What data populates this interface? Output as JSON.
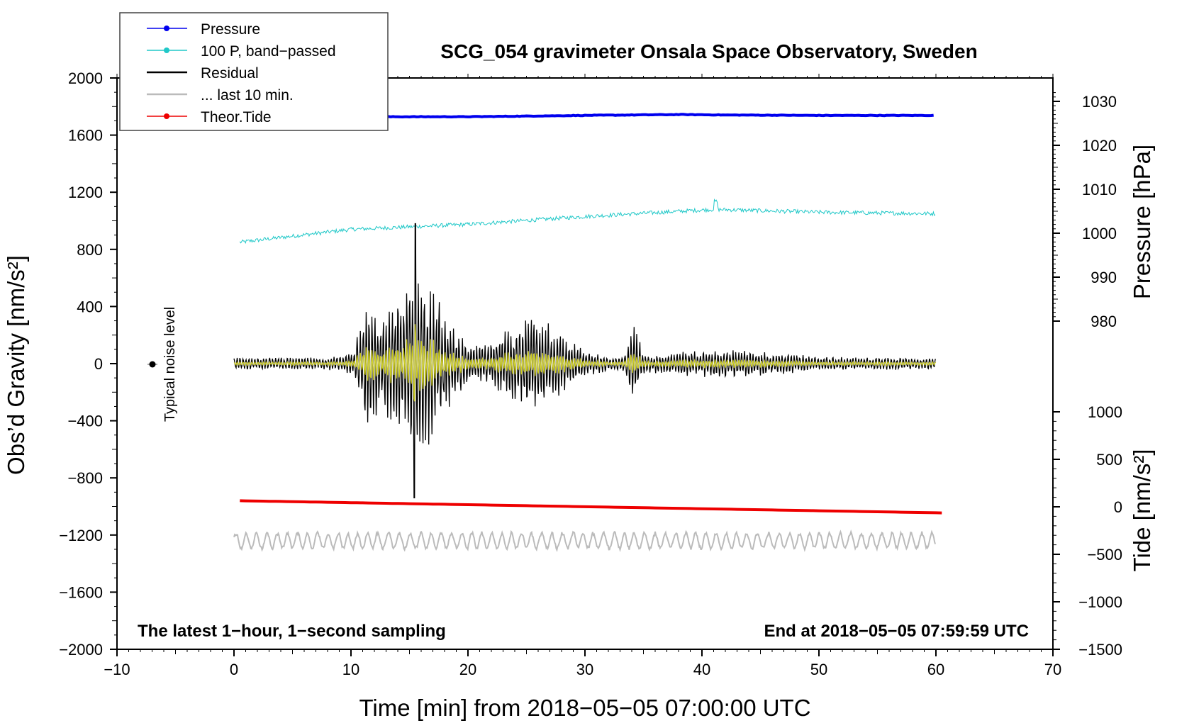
{
  "chart_data": {
    "type": "line",
    "title": "SCG_054 gravimeter Onsala Space Observatory, Sweden",
    "xlabel": "Time [min] from 2018−05−05 07:00:00 UTC",
    "ylabel_left": "Obs’d Gravity [nm/s²]",
    "ylabel_right_top": "Pressure [hPa]",
    "ylabel_right_bottom": "Tide [nm/s²]",
    "xlim": [
      -10,
      70
    ],
    "ylim": [
      -2000,
      2000
    ],
    "pressure_axis_range": [
      1030,
      980
    ],
    "tide_axis_range": [
      -1500,
      1000
    ],
    "x_ticks": [
      "−10",
      "0",
      "10",
      "20",
      "30",
      "40",
      "50",
      "60",
      "70"
    ],
    "y_ticks": [
      "2000",
      "1600",
      "1200",
      "800",
      "400",
      "0",
      "−400",
      "−800",
      "−1200",
      "−1600",
      "−2000"
    ],
    "pressure_ticks": [
      "1030",
      "1020",
      "1010",
      "1000",
      "990",
      "980"
    ],
    "tide_ticks": [
      "1000",
      "500",
      "0",
      "−500",
      "−1000",
      "−1500"
    ],
    "series": [
      {
        "name": "Pressure",
        "color": "#0000ee",
        "unit": "hPa",
        "x": [
          0,
          10,
          20,
          30,
          38,
          42,
          50,
          60
        ],
        "values": [
          1026.5,
          1026.5,
          1026.5,
          1026.8,
          1027.0,
          1026.9,
          1026.8,
          1026.8
        ]
      },
      {
        "name": "100 P, band−passed",
        "color": "#20c8c8",
        "unit": "nm/s²",
        "x": [
          0.5,
          10,
          20,
          30,
          41,
          50,
          60
        ],
        "values": [
          850,
          940,
          975,
          1030,
          1080,
          1060,
          1050
        ]
      },
      {
        "name": "Residual",
        "color": "#000000",
        "unit": "nm/s²",
        "x": [
          0,
          5,
          11,
          12,
          15.5,
          17,
          20,
          26,
          34,
          40,
          60
        ],
        "values": [
          0,
          30,
          600,
          -560,
          980,
          -660,
          300,
          470,
          370,
          90,
          40
        ]
      },
      {
        "name": "... last 10 min.",
        "color": "#bbbbbb",
        "unit": "nm/s²",
        "x": [
          0,
          60
        ],
        "values": [
          -1240,
          -1240
        ]
      },
      {
        "name": "Theor.Tide",
        "color": "#ee0000",
        "unit": "nm/s²",
        "x": [
          0.5,
          60.5
        ],
        "values": [
          -960,
          -1045
        ]
      }
    ],
    "filtered_residual": {
      "color": "#cccc22"
    },
    "noise_level": {
      "label": "Typical noise level",
      "x": -7,
      "y": 0
    },
    "annotation_left": "The latest 1−hour, 1−second sampling",
    "annotation_right": "End at 2018−05−05 07:59:59 UTC",
    "legend_position": "top-left"
  }
}
